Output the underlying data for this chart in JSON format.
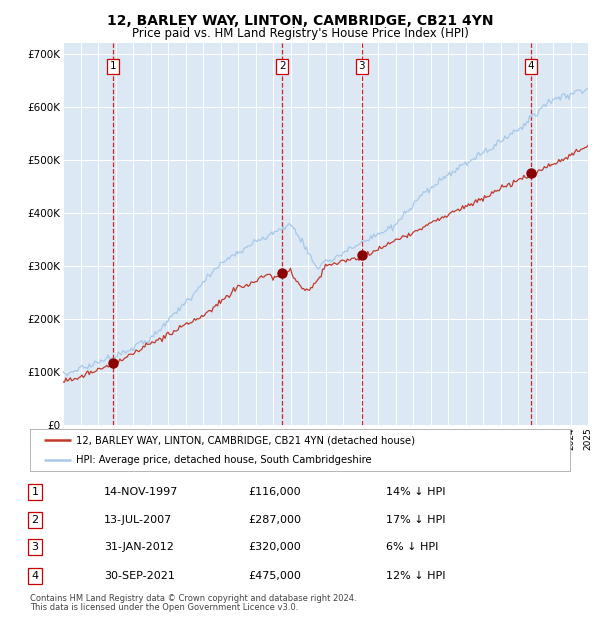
{
  "title": "12, BARLEY WAY, LINTON, CAMBRIDGE, CB21 4YN",
  "subtitle": "Price paid vs. HM Land Registry's House Price Index (HPI)",
  "title_fontsize": 10,
  "subtitle_fontsize": 8.5,
  "plot_bg_color": "#dce9f5",
  "hpi_color": "#a8c8e8",
  "price_color": "#c0392b",
  "marker_color": "#8b0000",
  "vline_color": "#cc0000",
  "ylim": [
    0,
    720000
  ],
  "yticks": [
    0,
    100000,
    200000,
    300000,
    400000,
    500000,
    600000,
    700000
  ],
  "ytick_labels": [
    "£0",
    "£100K",
    "£200K",
    "£300K",
    "£400K",
    "£500K",
    "£600K",
    "£700K"
  ],
  "sale_year_floats": [
    1997.868,
    2007.534,
    2012.083,
    2021.747
  ],
  "sale_prices": [
    116000,
    287000,
    320000,
    475000
  ],
  "sale_labels": [
    "1",
    "2",
    "3",
    "4"
  ],
  "legend_line1": "12, BARLEY WAY, LINTON, CAMBRIDGE, CB21 4YN (detached house)",
  "legend_line2": "HPI: Average price, detached house, South Cambridgeshire",
  "table_rows": [
    [
      "1",
      "14-NOV-1997",
      "£116,000",
      "14% ↓ HPI"
    ],
    [
      "2",
      "13-JUL-2007",
      "£287,000",
      "17% ↓ HPI"
    ],
    [
      "3",
      "31-JAN-2012",
      "£320,000",
      "6% ↓ HPI"
    ],
    [
      "4",
      "30-SEP-2021",
      "£475,000",
      "12% ↓ HPI"
    ]
  ],
  "footnote": "Contains HM Land Registry data © Crown copyright and database right 2024.\nThis data is licensed under the Open Government Licence v3.0.",
  "x_start_year": 1995,
  "x_end_year": 2025
}
